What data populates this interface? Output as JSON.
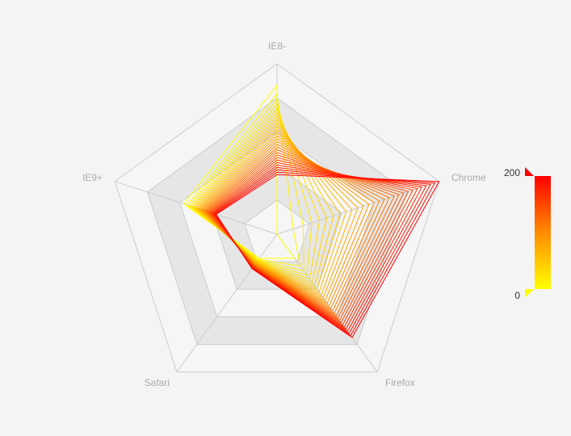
{
  "chart_data": {
    "type": "radar",
    "title": "",
    "indicators": [
      {
        "name": "IE8-",
        "max": 400
      },
      {
        "name": "Chrome",
        "max": 400
      },
      {
        "name": "Firefox",
        "max": 400
      },
      {
        "name": "Safari",
        "max": 400
      },
      {
        "name": "IE9+",
        "max": 400
      }
    ],
    "split_number": 5,
    "series_count": 28,
    "series_first": [
      350,
      0,
      70,
      70,
      230
    ],
    "series_last": [
      140,
      400,
      300,
      100,
      150
    ],
    "visual_map": {
      "min": 0,
      "max": 200,
      "min_label": "0",
      "max_label": "200",
      "colors": [
        "#ffff00",
        "#ff8c00",
        "#ff0000"
      ]
    },
    "grid_colors": {
      "line": "#cccccc",
      "band_light": "#f6f6f6",
      "band_dark": "#e6e6e6"
    }
  }
}
